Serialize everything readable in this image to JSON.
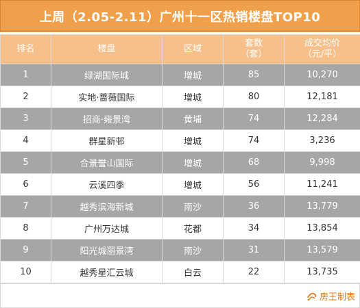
{
  "title": "上周（2.05-2.11）广州十一区热销楼盘TOP10",
  "columns": {
    "rank": "排名",
    "project": "楼盘",
    "district": "区域",
    "units_line1": "套数",
    "units_line2": "（套）",
    "price_line1": "成交均价",
    "price_line2": "（元/平）"
  },
  "rows": [
    {
      "rank": "1",
      "project": "绿湖国际城",
      "district": "增城",
      "units": "85",
      "price": "10,270"
    },
    {
      "rank": "2",
      "project": "实地·蔷薇国际",
      "district": "增城",
      "units": "80",
      "price": "12,181"
    },
    {
      "rank": "3",
      "project": "招商·雍景湾",
      "district": "黄埔",
      "units": "74",
      "price": "12,284"
    },
    {
      "rank": "4",
      "project": "群星新邨",
      "district": "增城",
      "units": "74",
      "price": "3,236"
    },
    {
      "rank": "5",
      "project": "合景誉山国际",
      "district": "增城",
      "units": "68",
      "price": "9,998"
    },
    {
      "rank": "6",
      "project": "云溪四季",
      "district": "增城",
      "units": "56",
      "price": "11,241"
    },
    {
      "rank": "7",
      "project": "越秀滨海新城",
      "district": "南沙",
      "units": "36",
      "price": "13,779"
    },
    {
      "rank": "8",
      "project": "广州万达城",
      "district": "花都",
      "units": "34",
      "price": "13,854"
    },
    {
      "rank": "9",
      "project": "阳光城丽景湾",
      "district": "南沙",
      "units": "31",
      "price": "13,579"
    },
    {
      "rank": "10",
      "project": "越秀星汇云城",
      "district": "白云",
      "units": "22",
      "price": "13,735"
    }
  ],
  "footer": {
    "credit": "房王制表",
    "icon": "fangwang-logo-icon"
  },
  "colors": {
    "title_bg": "#f0a04a",
    "header_bg": "#f7c08a",
    "row_shade": "#a6a6a6",
    "credit": "#e07b1f"
  }
}
